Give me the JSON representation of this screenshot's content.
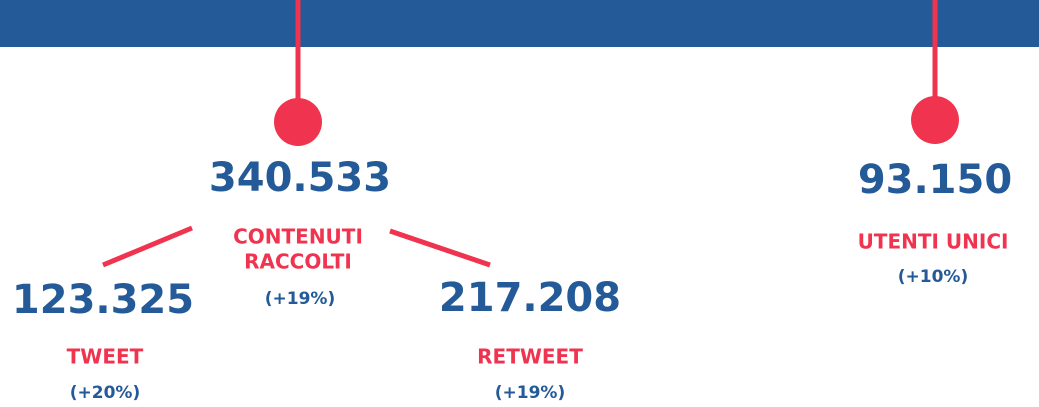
{
  "total": {
    "value": "340.533",
    "label": [
      "CONTENUTI",
      "RACCOLTI"
    ],
    "change": "(+19%)"
  },
  "tweet": {
    "value": "123.325",
    "label": "TWEET",
    "change": "(+20%)"
  },
  "retweet": {
    "value": "217.208",
    "label": "RETWEET",
    "change": "(+19%)"
  },
  "users": {
    "value": "93.150",
    "label": "UTENTI UNICI",
    "change": "(+10%)"
  }
}
